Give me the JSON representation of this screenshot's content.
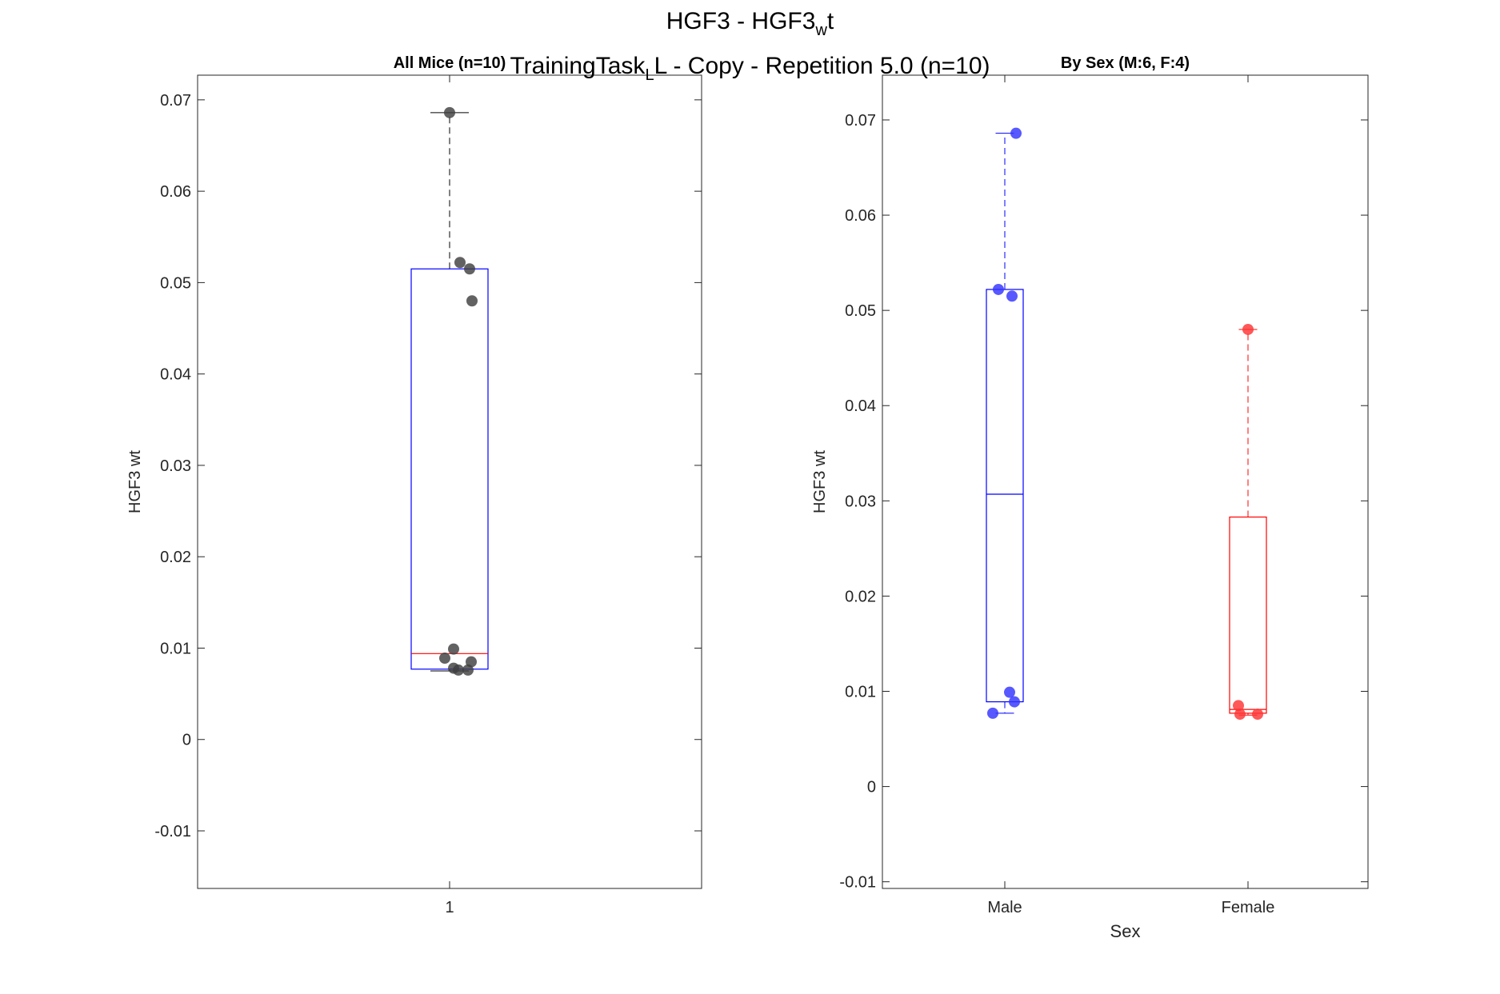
{
  "figure": {
    "title_line1": {
      "a": "HGF3 - HGF3",
      "sub": "w",
      "b": "t"
    },
    "title_line2": {
      "a": "TrainingTask",
      "sub": "L",
      "b": "L - Copy - Repetition 5.0 (n=10)"
    }
  },
  "chart_data": [
    {
      "type": "box",
      "title": "All Mice (n=10)",
      "xlabel": "",
      "ylabel": "HGF3 wt",
      "categories": [
        "1"
      ],
      "ylim": [
        -0.0163,
        0.0727
      ],
      "yticks": [
        -0.01,
        0,
        0.01,
        0.02,
        0.03,
        0.04,
        0.05,
        0.06,
        0.07
      ],
      "grid": false,
      "boxes": [
        {
          "category": "1",
          "q1": 0.0077,
          "median": 0.0094,
          "q3": 0.0515,
          "whisker_low": 0.0075,
          "whisker_high": 0.0686,
          "box_color": "#0000ff",
          "median_color": "#ff0000",
          "whisker_color": "#000000"
        }
      ],
      "points": [
        {
          "category": "1",
          "color": "#404040",
          "values": [
            0.0686,
            0.0522,
            0.0515,
            0.048,
            0.0099,
            0.0089,
            0.0085,
            0.0078,
            0.0076,
            0.0076
          ]
        }
      ]
    },
    {
      "type": "box",
      "title": "By Sex (M:6, F:4)",
      "xlabel": "Sex",
      "ylabel": "HGF3 wt",
      "categories": [
        "Male",
        "Female"
      ],
      "ylim": [
        -0.0107,
        0.0747
      ],
      "yticks": [
        -0.01,
        0,
        0.01,
        0.02,
        0.03,
        0.04,
        0.05,
        0.06,
        0.07
      ],
      "grid": false,
      "boxes": [
        {
          "category": "Male",
          "q1": 0.0089,
          "median": 0.0307,
          "q3": 0.0522,
          "whisker_low": 0.0077,
          "whisker_high": 0.0686,
          "box_color": "#0000ff",
          "median_color": "#0000ff",
          "whisker_color": "#0000ff"
        },
        {
          "category": "Female",
          "q1": 0.0077,
          "median": 0.0081,
          "q3": 0.0283,
          "whisker_low": 0.0075,
          "whisker_high": 0.048,
          "box_color": "#ff0000",
          "median_color": "#ff0000",
          "whisker_color": "#ff0000"
        }
      ],
      "points": [
        {
          "category": "Male",
          "color": "#3333ff",
          "values": [
            0.0686,
            0.0522,
            0.0515,
            0.0099,
            0.0089,
            0.0077
          ]
        },
        {
          "category": "Female",
          "color": "#ff3333",
          "values": [
            0.048,
            0.0085,
            0.0076,
            0.0076
          ]
        }
      ]
    }
  ]
}
